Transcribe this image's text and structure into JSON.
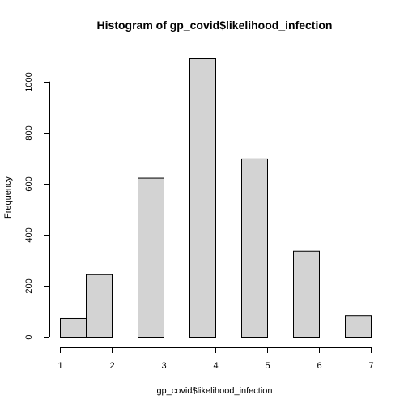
{
  "chart_data": {
    "type": "bar",
    "title": "Histogram of gp_covid$likelihood_infection",
    "xlabel": "gp_covid$likelihood_infection",
    "ylabel": "Frequency",
    "bins": [
      {
        "start": 1.0,
        "end": 1.5,
        "count": 73
      },
      {
        "start": 1.5,
        "end": 2.0,
        "count": 245
      },
      {
        "start": 2.0,
        "end": 2.5,
        "count": 0
      },
      {
        "start": 2.5,
        "end": 3.0,
        "count": 623
      },
      {
        "start": 3.0,
        "end": 3.5,
        "count": 0
      },
      {
        "start": 3.5,
        "end": 4.0,
        "count": 1091
      },
      {
        "start": 4.0,
        "end": 4.5,
        "count": 0
      },
      {
        "start": 4.5,
        "end": 5.0,
        "count": 698
      },
      {
        "start": 5.0,
        "end": 5.5,
        "count": 0
      },
      {
        "start": 5.5,
        "end": 6.0,
        "count": 337
      },
      {
        "start": 6.0,
        "end": 6.5,
        "count": 0
      },
      {
        "start": 6.5,
        "end": 7.0,
        "count": 85
      }
    ],
    "xticks": [
      1,
      2,
      3,
      4,
      5,
      6,
      7
    ],
    "yticks": [
      0,
      200,
      400,
      600,
      800,
      1000
    ],
    "xlim": [
      1,
      7
    ],
    "ylim": [
      0,
      1091
    ],
    "bar_fill": "#d3d3d3",
    "bar_stroke": "#000000",
    "grid": false,
    "legend": "none"
  }
}
